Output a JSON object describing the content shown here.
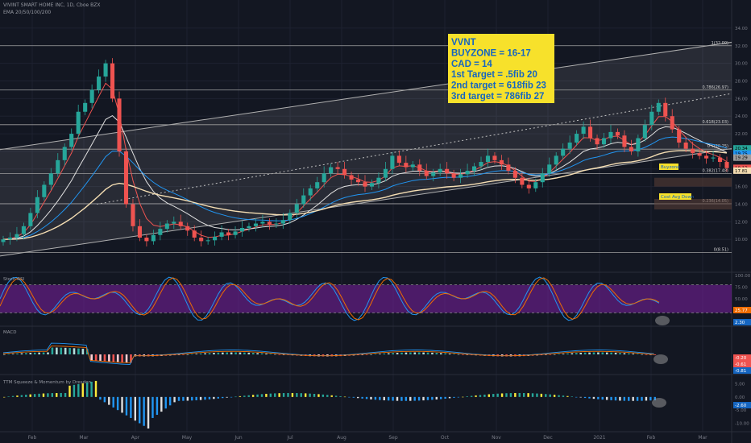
{
  "header": {
    "symbol_line": "VIVINT SMART HOME INC, 1D, Cboe BZX",
    "ema_line": "EMA 20/50/100/200"
  },
  "annotation": {
    "lines": [
      "VVNT",
      "BUYZONE = 16-17",
      "CAD = 14",
      "1st Target = .5fib 20",
      "2nd target = 618fib 23",
      "3rd target = 786fib 27"
    ],
    "background": "#f7e12b",
    "text_color": "#1565c0"
  },
  "zone_labels": {
    "buyzone": "Buyzone",
    "cad": "Cost Avg Down"
  },
  "chart_data": [
    {
      "type": "candlestick",
      "yaxis_ticks": [
        "34.00",
        "32.00",
        "30.00",
        "28.00",
        "26.00",
        "24.00",
        "22.00",
        "20.00",
        "18.00",
        "16.00",
        "14.00",
        "12.00",
        "10.00"
      ],
      "ylim": [
        7,
        35
      ],
      "x_ticks": [
        "Feb",
        "Mar",
        "Apr",
        "May",
        "Jun",
        "Jul",
        "Aug",
        "Sep",
        "Oct",
        "Nov",
        "Dec",
        "2021",
        "Feb",
        "Mar"
      ],
      "fib_levels": [
        {
          "label": "1(32.00)",
          "value": 32.0
        },
        {
          "label": "0.786(26.97)",
          "value": 26.97
        },
        {
          "label": "0.618(23.03)",
          "value": 23.03
        },
        {
          "label": "0.5(20.25)",
          "value": 20.25
        },
        {
          "label": "0.382(17.48)",
          "value": 17.48
        },
        {
          "label": "0.236(14.05)",
          "value": 14.05
        },
        {
          "label": "0(8.51)",
          "value": 8.51
        }
      ],
      "price_tags": [
        {
          "text": "20.34",
          "value": 20.34,
          "color": "#26a69a"
        },
        {
          "text": "19.75",
          "value": 19.75,
          "color": "#2196f3"
        },
        {
          "text": "19.29",
          "value": 19.29,
          "color": "#9e9e9e"
        },
        {
          "text": "18.13",
          "value": 18.13,
          "color": "#ef5350"
        },
        {
          "text": "17.81",
          "value": 17.81,
          "color": "#f5deb3"
        }
      ],
      "buyzone": [
        16,
        17
      ],
      "cad_level": 14,
      "channel": {
        "start": [
          0,
          14.0
        ],
        "end": [
          1,
          26.2
        ],
        "width": 6.2
      },
      "closes": [
        10.0,
        10.2,
        10.6,
        11.5,
        13.0,
        14.8,
        16.2,
        17.5,
        19.0,
        20.5,
        22.0,
        24.5,
        25.5,
        27.0,
        28.5,
        30.0,
        26.0,
        20.0,
        14.0,
        11.5,
        10.2,
        9.8,
        10.5,
        11.2,
        11.8,
        12.0,
        11.5,
        11.0,
        10.2,
        9.8,
        9.9,
        10.3,
        10.8,
        10.5,
        10.9,
        11.3,
        11.5,
        11.8,
        12.0,
        11.7,
        11.8,
        12.2,
        13.0,
        14.0,
        15.0,
        15.8,
        16.5,
        17.5,
        18.2,
        18.0,
        17.3,
        16.8,
        16.5,
        16.0,
        16.4,
        17.0,
        18.0,
        19.5,
        18.7,
        18.2,
        18.5,
        17.8,
        17.2,
        17.6,
        18.0,
        17.5,
        17.0,
        17.4,
        17.8,
        18.3,
        18.8,
        19.5,
        19.0,
        18.5,
        17.8,
        17.0,
        16.2,
        15.8,
        16.5,
        17.5,
        18.5,
        19.5,
        20.3,
        21.0,
        22.0,
        22.8,
        21.5,
        20.8,
        21.5,
        22.2,
        21.8,
        20.5,
        20.0,
        21.5,
        23.0,
        24.5,
        25.5,
        24.0,
        22.5,
        21.0,
        20.3,
        19.8,
        19.5,
        19.2,
        19.3,
        18.8,
        18.1
      ],
      "ema": [
        {
          "name": "EMA 20",
          "color": "#ef5350"
        },
        {
          "name": "EMA 50",
          "color": "#e0e0e0"
        },
        {
          "name": "EMA 100",
          "color": "#2196f3"
        },
        {
          "name": "EMA 200",
          "color": "#f5deb3"
        }
      ]
    },
    {
      "type": "line",
      "title": "Stoch RSI",
      "y_ticks": [
        "100.00",
        "75.00",
        "50.00",
        "25.00"
      ],
      "ylim": [
        0,
        100
      ],
      "band": [
        20,
        80
      ],
      "value_tags": [
        {
          "text": "25.77",
          "color": "#ef6c00"
        },
        {
          "text": "2.30",
          "color": "#1565c0"
        }
      ]
    },
    {
      "type": "bar",
      "title": "MACD",
      "value_tags": [
        {
          "text": "-0.20",
          "color": "#ef5350"
        },
        {
          "text": "-0.61",
          "color": "#ef5350"
        },
        {
          "text": "-0.81",
          "color": "#1565c0"
        }
      ]
    },
    {
      "type": "bar",
      "title": "TTM Squeeze & Momentum by Dresden",
      "y_ticks": [
        "5.00",
        "0.00",
        "-5.00",
        "-10.00"
      ],
      "ylim": [
        -12,
        7
      ],
      "value_tags": [
        {
          "text": "-2.60",
          "color": "#1565c0"
        }
      ]
    }
  ]
}
